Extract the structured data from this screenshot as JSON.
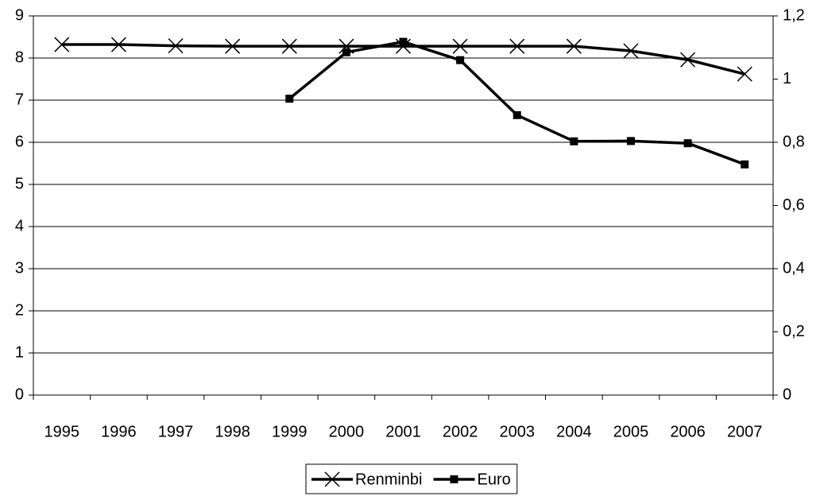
{
  "chart_data": {
    "type": "line",
    "categories": [
      "1995",
      "1996",
      "1997",
      "1998",
      "1999",
      "2000",
      "2001",
      "2002",
      "2003",
      "2004",
      "2005",
      "2006",
      "2007"
    ],
    "series": [
      {
        "name": "Renminbi",
        "color": "#000000",
        "marker": "x",
        "values": [
          8.32,
          8.32,
          8.29,
          8.28,
          8.28,
          8.28,
          8.28,
          8.28,
          8.28,
          8.28,
          8.17,
          7.96,
          7.62
        ]
      },
      {
        "name": "Euro",
        "color": "#000000",
        "marker": "square",
        "axis": "y2",
        "values": [
          null,
          null,
          null,
          null,
          0.938,
          1.085,
          1.118,
          1.06,
          0.886,
          0.803,
          0.804,
          0.797,
          0.73
        ]
      }
    ],
    "ylim": [
      0,
      9
    ],
    "yticks": [
      0,
      1,
      2,
      3,
      4,
      5,
      6,
      7,
      8,
      9
    ],
    "y2lim": [
      0,
      1.2
    ],
    "y2ticks": [
      0,
      {
        "value": 0.2,
        "label": "0,2"
      },
      {
        "value": 0.4,
        "label": "0,4"
      },
      {
        "value": 0.6,
        "label": "0,6"
      },
      {
        "value": 0.8,
        "label": "0,8"
      },
      1,
      {
        "value": 1.2,
        "label": "1,2"
      }
    ],
    "grid": true,
    "legend": "bottom"
  }
}
